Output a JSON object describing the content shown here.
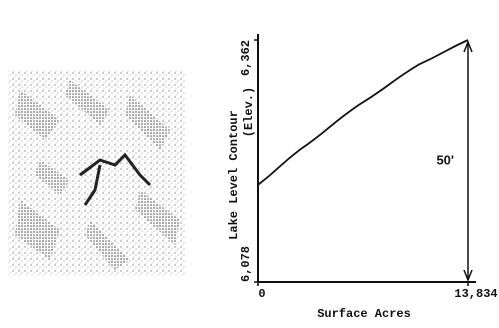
{
  "chart_data": {
    "type": "line",
    "x_label": "Surface Acres",
    "y_label": [
      "Lake Level Contour",
      "(Elev.)"
    ],
    "annotation": "50'",
    "x": [
      0,
      2740,
      6656,
      10571,
      13834
    ],
    "series": [
      {
        "color": "#111111",
        "values": [
          6192,
          6233,
          6286,
          6333,
          6362
        ]
      }
    ],
    "xlim": [
      0,
      13834
    ],
    "ylim": [
      6078,
      6362
    ],
    "xticks": [
      0,
      {
        "value": 13834,
        "label": "13,834"
      }
    ],
    "yticks": [
      {
        "value": 6078,
        "label": "6,078"
      },
      {
        "value": 6362,
        "label": "6,362"
      }
    ]
  }
}
